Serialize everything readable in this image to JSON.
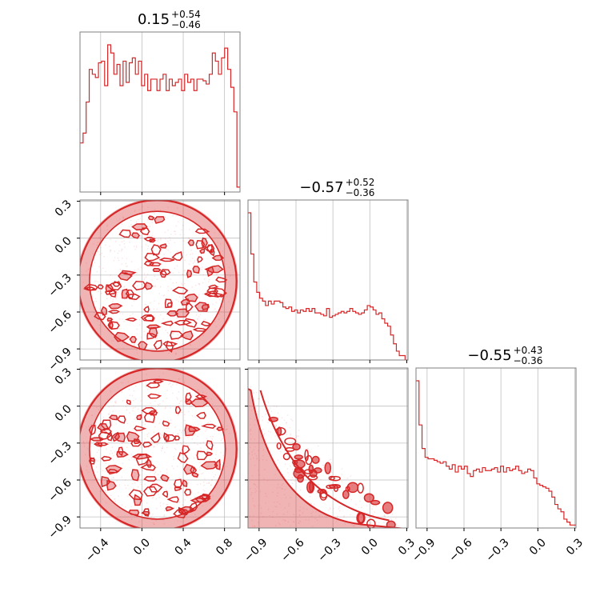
{
  "chart_data": {
    "type": "corner",
    "color": "#d62728",
    "grid": true,
    "parameters": [
      {
        "title_median": "0.15",
        "title_plus": "+0.54",
        "title_minus": "−0.46",
        "range": [
          -0.6,
          0.95
        ],
        "ticks": [
          -0.4,
          0.0,
          0.4,
          0.8
        ],
        "tick_labels": [
          "−0.4",
          "0.0",
          "0.4",
          "0.8"
        ]
      },
      {
        "title_median": "−0.57",
        "title_plus": "+0.52",
        "title_minus": "−0.36",
        "range": [
          -0.99,
          0.31
        ],
        "ticks": [
          -0.9,
          -0.6,
          -0.3,
          0.0,
          0.3
        ],
        "tick_labels": [
          "−0.9",
          "−0.6",
          "−0.3",
          "0.0",
          "0.3"
        ]
      },
      {
        "title_median": "−0.55",
        "title_plus": "+0.43",
        "title_minus": "−0.36",
        "range": [
          -0.99,
          0.31
        ],
        "ticks": [
          -0.9,
          -0.6,
          -0.3,
          0.0,
          0.3
        ],
        "tick_labels": [
          "−0.9",
          "−0.6",
          "−0.3",
          "0.0",
          "0.3"
        ]
      }
    ],
    "histograms": [
      {
        "param": 0,
        "bin_start": -0.6,
        "bin_end": 0.95,
        "counts": [
          0.3,
          0.36,
          0.55,
          0.75,
          0.72,
          0.7,
          0.79,
          0.8,
          0.65,
          0.9,
          0.85,
          0.72,
          0.78,
          0.65,
          0.8,
          0.67,
          0.79,
          0.82,
          0.72,
          0.8,
          0.65,
          0.72,
          0.62,
          0.69,
          0.69,
          0.62,
          0.69,
          0.72,
          0.62,
          0.69,
          0.65,
          0.67,
          0.69,
          0.62,
          0.72,
          0.67,
          0.69,
          0.62,
          0.69,
          0.69,
          0.68,
          0.66,
          0.72,
          0.85,
          0.8,
          0.72,
          0.82,
          0.88,
          0.75,
          0.64,
          0.49,
          0.03
        ]
      },
      {
        "param": 1,
        "bin_start": -0.99,
        "bin_end": 0.31,
        "counts": [
          1.0,
          0.72,
          0.53,
          0.46,
          0.42,
          0.4,
          0.37,
          0.4,
          0.38,
          0.4,
          0.4,
          0.39,
          0.36,
          0.35,
          0.36,
          0.33,
          0.34,
          0.32,
          0.34,
          0.33,
          0.35,
          0.33,
          0.35,
          0.32,
          0.32,
          0.31,
          0.3,
          0.35,
          0.29,
          0.3,
          0.31,
          0.32,
          0.33,
          0.32,
          0.33,
          0.35,
          0.33,
          0.32,
          0.31,
          0.32,
          0.34,
          0.37,
          0.36,
          0.34,
          0.31,
          0.32,
          0.28,
          0.25,
          0.23,
          0.17,
          0.11,
          0.06,
          0.03,
          0.03,
          0.0
        ]
      },
      {
        "param": 2,
        "bin_start": -0.99,
        "bin_end": 0.31,
        "counts": [
          1.0,
          0.7,
          0.54,
          0.48,
          0.47,
          0.47,
          0.46,
          0.45,
          0.44,
          0.45,
          0.42,
          0.4,
          0.43,
          0.38,
          0.42,
          0.4,
          0.42,
          0.37,
          0.35,
          0.39,
          0.4,
          0.38,
          0.41,
          0.39,
          0.39,
          0.4,
          0.41,
          0.38,
          0.42,
          0.38,
          0.41,
          0.39,
          0.4,
          0.42,
          0.39,
          0.37,
          0.38,
          0.4,
          0.39,
          0.34,
          0.3,
          0.29,
          0.28,
          0.27,
          0.25,
          0.21,
          0.16,
          0.13,
          0.11,
          0.06,
          0.04,
          0.02,
          0.02
        ]
      }
    ],
    "scatters": [
      {
        "x_param": 0,
        "y_param": 1,
        "shape": "disk",
        "center": [
          0.15,
          -0.35
        ],
        "radii": [
          0.72,
          0.62
        ]
      },
      {
        "x_param": 0,
        "y_param": 2,
        "shape": "disk",
        "center": [
          0.15,
          -0.35
        ],
        "radii": [
          0.72,
          0.62
        ]
      },
      {
        "x_param": 1,
        "y_param": 2,
        "shape": "triangle",
        "corner": [
          -0.98,
          -0.98
        ],
        "extent": [
          1.28,
          1.2
        ]
      }
    ]
  }
}
